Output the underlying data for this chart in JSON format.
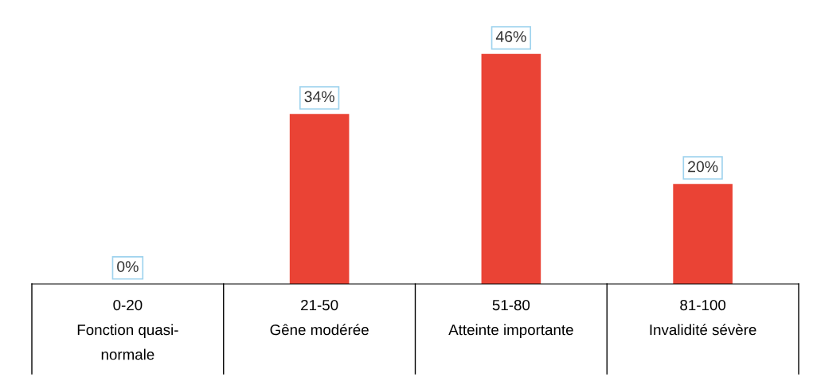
{
  "chart_data": {
    "type": "bar",
    "categories": [
      "0-20\nFonction quasi-\nnormale",
      "21-50\nGêne modérée",
      "51-80\nAtteinte importante",
      "81-100\nInvalidité sévère"
    ],
    "values": [
      0,
      34,
      46,
      20
    ],
    "value_labels": [
      "0%",
      "34%",
      "46%",
      "20%"
    ],
    "color": "#ea4335"
  }
}
